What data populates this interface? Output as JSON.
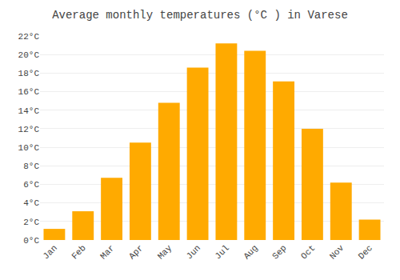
{
  "chart_data": {
    "type": "bar",
    "title": "Average monthly temperatures (°C ) in Varese",
    "categories": [
      "Jan",
      "Feb",
      "Mar",
      "Apr",
      "May",
      "Jun",
      "Jul",
      "Aug",
      "Sep",
      "Oct",
      "Nov",
      "Dec"
    ],
    "values": [
      1.2,
      3.1,
      6.7,
      10.5,
      14.8,
      18.6,
      21.2,
      20.4,
      17.1,
      12.0,
      6.2,
      2.2
    ],
    "color": "#FFAA00",
    "ylim": [
      0,
      22
    ],
    "yticks": [
      {
        "value": 0,
        "label": "0°C"
      },
      {
        "value": 2,
        "label": "2°C"
      },
      {
        "value": 4,
        "label": "4°C"
      },
      {
        "value": 6,
        "label": "6°C"
      },
      {
        "value": 8,
        "label": "8°C"
      },
      {
        "value": 10,
        "label": "10°C"
      },
      {
        "value": 12,
        "label": "12°C"
      },
      {
        "value": 14,
        "label": "14°C"
      },
      {
        "value": 16,
        "label": "16°C"
      },
      {
        "value": 18,
        "label": "18°C"
      },
      {
        "value": 20,
        "label": "20°C"
      },
      {
        "value": 22,
        "label": "22°C"
      }
    ],
    "grid": true
  }
}
